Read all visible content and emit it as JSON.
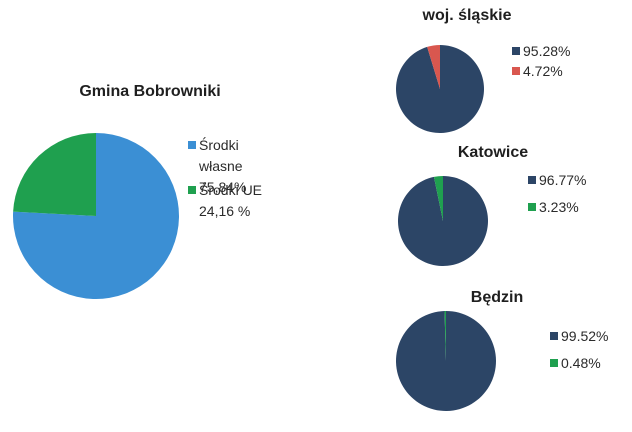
{
  "chart_data": [
    {
      "type": "pie",
      "title": "Gmina Bobrowniki",
      "legend_position": "right",
      "slices": [
        {
          "label_lines": [
            "Środki",
            "własne",
            "75,84%"
          ],
          "value": 75.84,
          "color": "#3b8fd4"
        },
        {
          "label_lines": [
            "Środki UE",
            "24,16 %"
          ],
          "value": 24.16,
          "color": "#1fa04f"
        }
      ]
    },
    {
      "type": "pie",
      "title": "woj.  śląskie",
      "legend_position": "right",
      "slices": [
        {
          "label_lines": [
            "95.28%"
          ],
          "value": 95.28,
          "color": "#2c4566"
        },
        {
          "label_lines": [
            "4.72%"
          ],
          "value": 4.72,
          "color": "#d9574f"
        }
      ]
    },
    {
      "type": "pie",
      "title": "Katowice",
      "legend_position": "right",
      "slices": [
        {
          "label_lines": [
            "96.77%"
          ],
          "value": 96.77,
          "color": "#2c4566"
        },
        {
          "label_lines": [
            "3.23%"
          ],
          "value": 3.23,
          "color": "#1fa04f"
        }
      ]
    },
    {
      "type": "pie",
      "title": "Będzin",
      "legend_position": "right",
      "slices": [
        {
          "label_lines": [
            "99.52%"
          ],
          "value": 99.52,
          "color": "#2c4566"
        },
        {
          "label_lines": [
            "0.48%"
          ],
          "value": 0.48,
          "color": "#1fa04f"
        }
      ]
    }
  ]
}
